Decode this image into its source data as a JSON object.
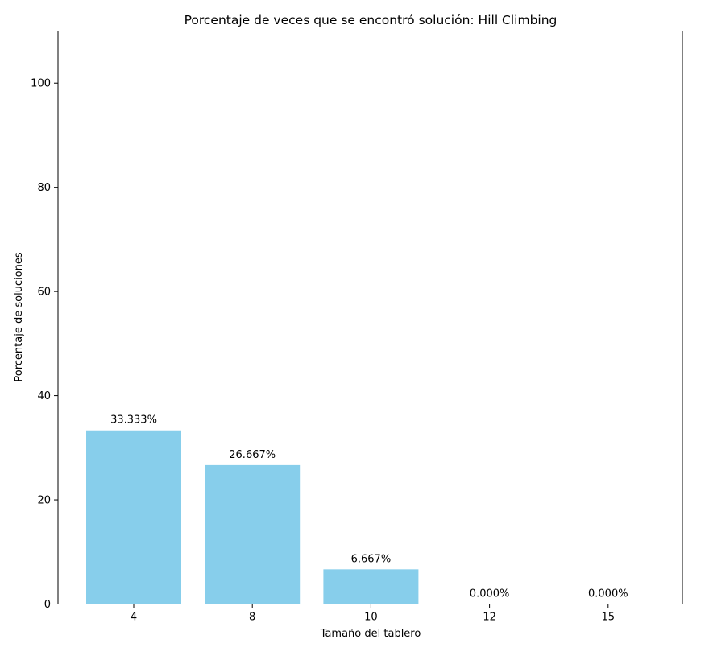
{
  "chart_data": {
    "type": "bar",
    "title": "Porcentaje de veces que se encontró solución: Hill Climbing",
    "xlabel": "Tamaño del tablero",
    "ylabel": "Porcentaje de soluciones",
    "categories": [
      "4",
      "8",
      "10",
      "12",
      "15"
    ],
    "values": [
      33.333,
      26.667,
      6.667,
      0.0,
      0.0
    ],
    "value_labels": [
      "33.333%",
      "26.667%",
      "6.667%",
      "0.000%",
      "0.000%"
    ],
    "ylim": [
      0,
      110
    ],
    "yticks": [
      0,
      20,
      40,
      60,
      80,
      100
    ],
    "bar_color": "#87ceeb",
    "grid": false,
    "legend": "none"
  }
}
